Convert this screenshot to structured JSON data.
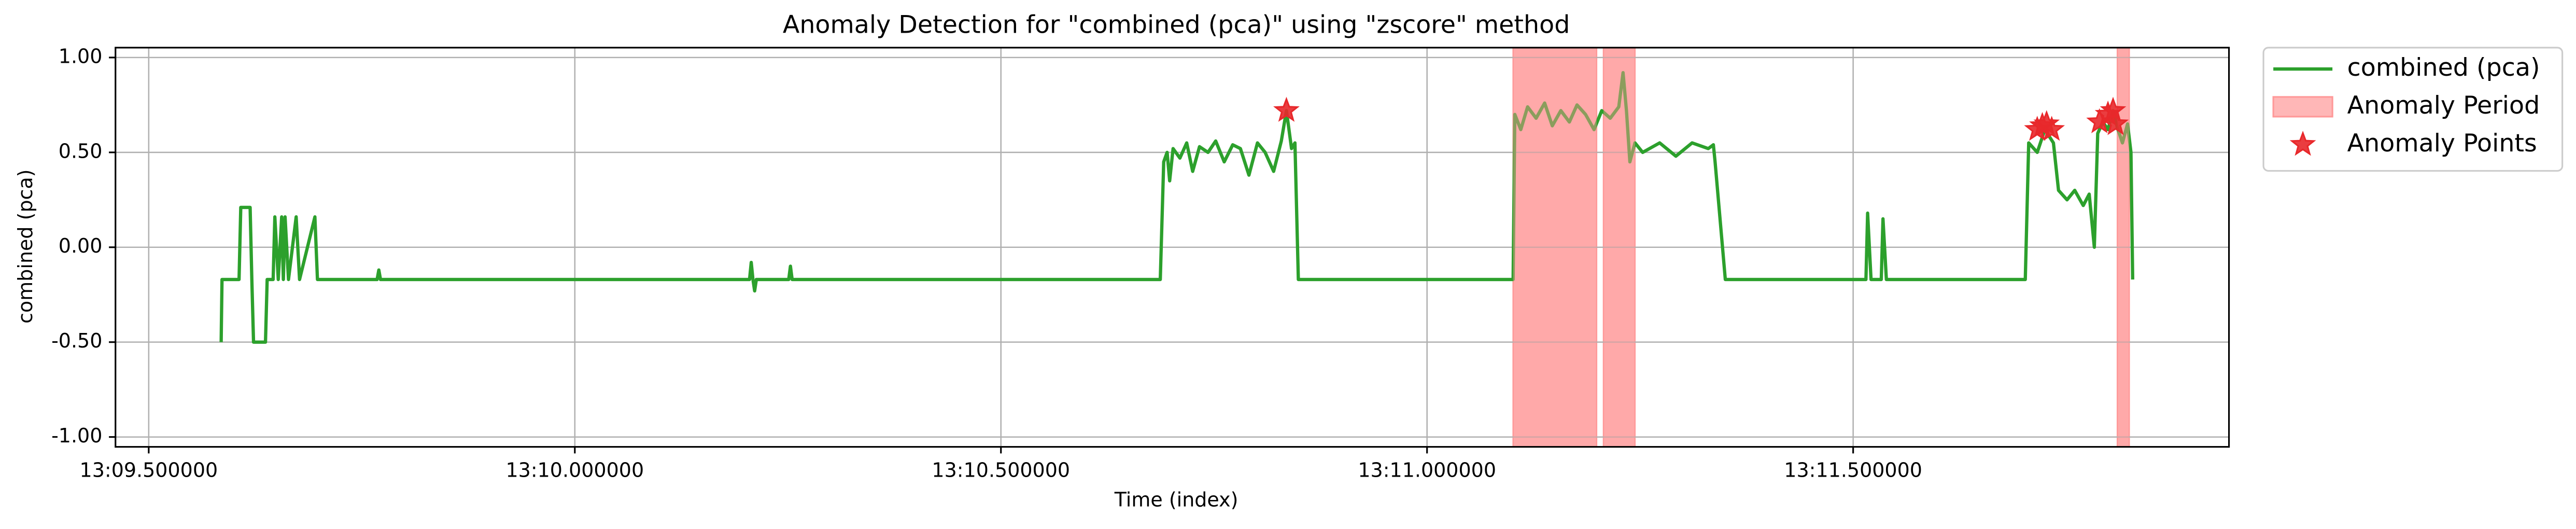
{
  "chart_data": {
    "type": "line",
    "title": "Anomaly Detection for \"combined (pca)\" using \"zscore\" method",
    "x_label": "Time (index)",
    "y_label": "combined (pca)",
    "xlim": [
      "13:09.461",
      "13:11.941"
    ],
    "xticks": [
      "13:09.500000",
      "13:10.000000",
      "13:10.500000",
      "13:11.000000",
      "13:11.500000"
    ],
    "ylim": [
      -1.052,
      1.052
    ],
    "yticks": [
      {
        "value": 1,
        "label": "1.00"
      },
      {
        "value": 0.5,
        "label": "0.50"
      },
      {
        "value": 0,
        "label": "0.00"
      },
      {
        "value": -0.5,
        "label": "-0.50"
      },
      {
        "value": -1,
        "label": "-1.00"
      }
    ],
    "grid": true,
    "legend": "outside upper right",
    "series": [
      {
        "name": "combined (pca)",
        "color": "#2ca02c",
        "x": [
          "13:09.585",
          "13:09.586",
          "13:09.606",
          "13:09.608",
          "13:09.619",
          "13:09.621",
          "13:09.623",
          "13:09.637",
          "13:09.639",
          "13:09.646",
          "13:09.648",
          "13:09.652",
          "13:09.656",
          "13:09.658",
          "13:09.660",
          "13:09.664",
          "13:09.673",
          "13:09.677",
          "13:09.695",
          "13:09.698",
          "13:09.768",
          "13:09.770",
          "13:09.772",
          "13:10.205",
          "13:10.207",
          "13:10.209",
          "13:10.211",
          "13:10.213",
          "13:10.251",
          "13:10.253",
          "13:10.255",
          "13:10.687",
          "13:10.691",
          "13:10.695",
          "13:10.698",
          "13:10.702",
          "13:10.710",
          "13:10.718",
          "13:10.725",
          "13:10.733",
          "13:10.743",
          "13:10.752",
          "13:10.762",
          "13:10.772",
          "13:10.781",
          "13:10.791",
          "13:10.801",
          "13:10.810",
          "13:10.820",
          "13:10.829",
          "13:10.835",
          "13:10.841",
          "13:10.845",
          "13:10.849",
          "13:11.101",
          "13:11.103",
          "13:11.110",
          "13:11.118",
          "13:11.128",
          "13:11.138",
          "13:11.147",
          "13:11.157",
          "13:11.167",
          "13:11.176",
          "13:11.186",
          "13:11.196",
          "13:11.205",
          "13:11.215",
          "13:11.225",
          "13:11.230",
          "13:11.234",
          "13:11.238",
          "13:11.244",
          "13:11.253",
          "13:11.273",
          "13:11.292",
          "13:11.311",
          "13:11.330",
          "13:11.336",
          "13:11.338",
          "13:11.350",
          "13:11.515",
          "13:11.517",
          "13:11.521",
          "13:11.533",
          "13:11.535",
          "13:11.539",
          "13:11.702",
          "13:11.706",
          "13:11.716",
          "13:11.725",
          "13:11.735",
          "13:11.741",
          "13:11.751",
          "13:11.760",
          "13:11.770",
          "13:11.777",
          "13:11.783",
          "13:11.787",
          "13:11.793",
          "13:11.799",
          "13:11.805",
          "13:11.810",
          "13:11.816",
          "13:11.822",
          "13:11.826",
          "13:11.828"
        ],
        "values": [
          -0.5,
          -0.17,
          -0.17,
          0.21,
          0.21,
          -0.17,
          -0.5,
          -0.5,
          -0.17,
          -0.17,
          0.16,
          -0.17,
          0.16,
          -0.17,
          0.16,
          -0.17,
          0.16,
          -0.17,
          0.16,
          -0.17,
          -0.17,
          -0.12,
          -0.17,
          -0.17,
          -0.08,
          -0.17,
          -0.23,
          -0.17,
          -0.17,
          -0.1,
          -0.17,
          -0.17,
          0.45,
          0.5,
          0.35,
          0.52,
          0.47,
          0.55,
          0.4,
          0.53,
          0.5,
          0.56,
          0.45,
          0.54,
          0.52,
          0.38,
          0.55,
          0.5,
          0.4,
          0.56,
          0.72,
          0.52,
          0.55,
          -0.17,
          -0.17,
          0.7,
          0.62,
          0.74,
          0.68,
          0.76,
          0.64,
          0.72,
          0.66,
          0.75,
          0.7,
          0.62,
          0.72,
          0.68,
          0.74,
          0.92,
          0.72,
          0.45,
          0.55,
          0.5,
          0.55,
          0.48,
          0.55,
          0.52,
          0.54,
          0.45,
          -0.17,
          -0.17,
          0.18,
          -0.17,
          -0.17,
          0.15,
          -0.17,
          -0.17,
          0.55,
          0.5,
          0.62,
          0.55,
          0.3,
          0.25,
          0.3,
          0.22,
          0.28,
          0.0,
          0.6,
          0.66,
          0.62,
          0.72,
          0.63,
          0.55,
          0.65,
          0.5,
          -0.17
        ]
      }
    ],
    "anomaly_periods": {
      "name": "Anomaly Period",
      "color": "#ff9999",
      "spans": [
        [
          "13:11.101",
          "13:11.199"
        ],
        [
          "13:11.207",
          "13:11.244"
        ],
        [
          "13:11.810",
          "13:11.824"
        ]
      ]
    },
    "anomaly_points": {
      "name": "Anomaly Points",
      "color": "#e8282b",
      "x": [
        "13:10.835",
        "13:11.716",
        "13:11.722",
        "13:11.727",
        "13:11.733",
        "13:11.789",
        "13:11.799",
        "13:11.805",
        "13:11.808"
      ],
      "values": [
        0.72,
        0.62,
        0.64,
        0.65,
        0.62,
        0.66,
        0.7,
        0.72,
        0.65
      ]
    }
  }
}
